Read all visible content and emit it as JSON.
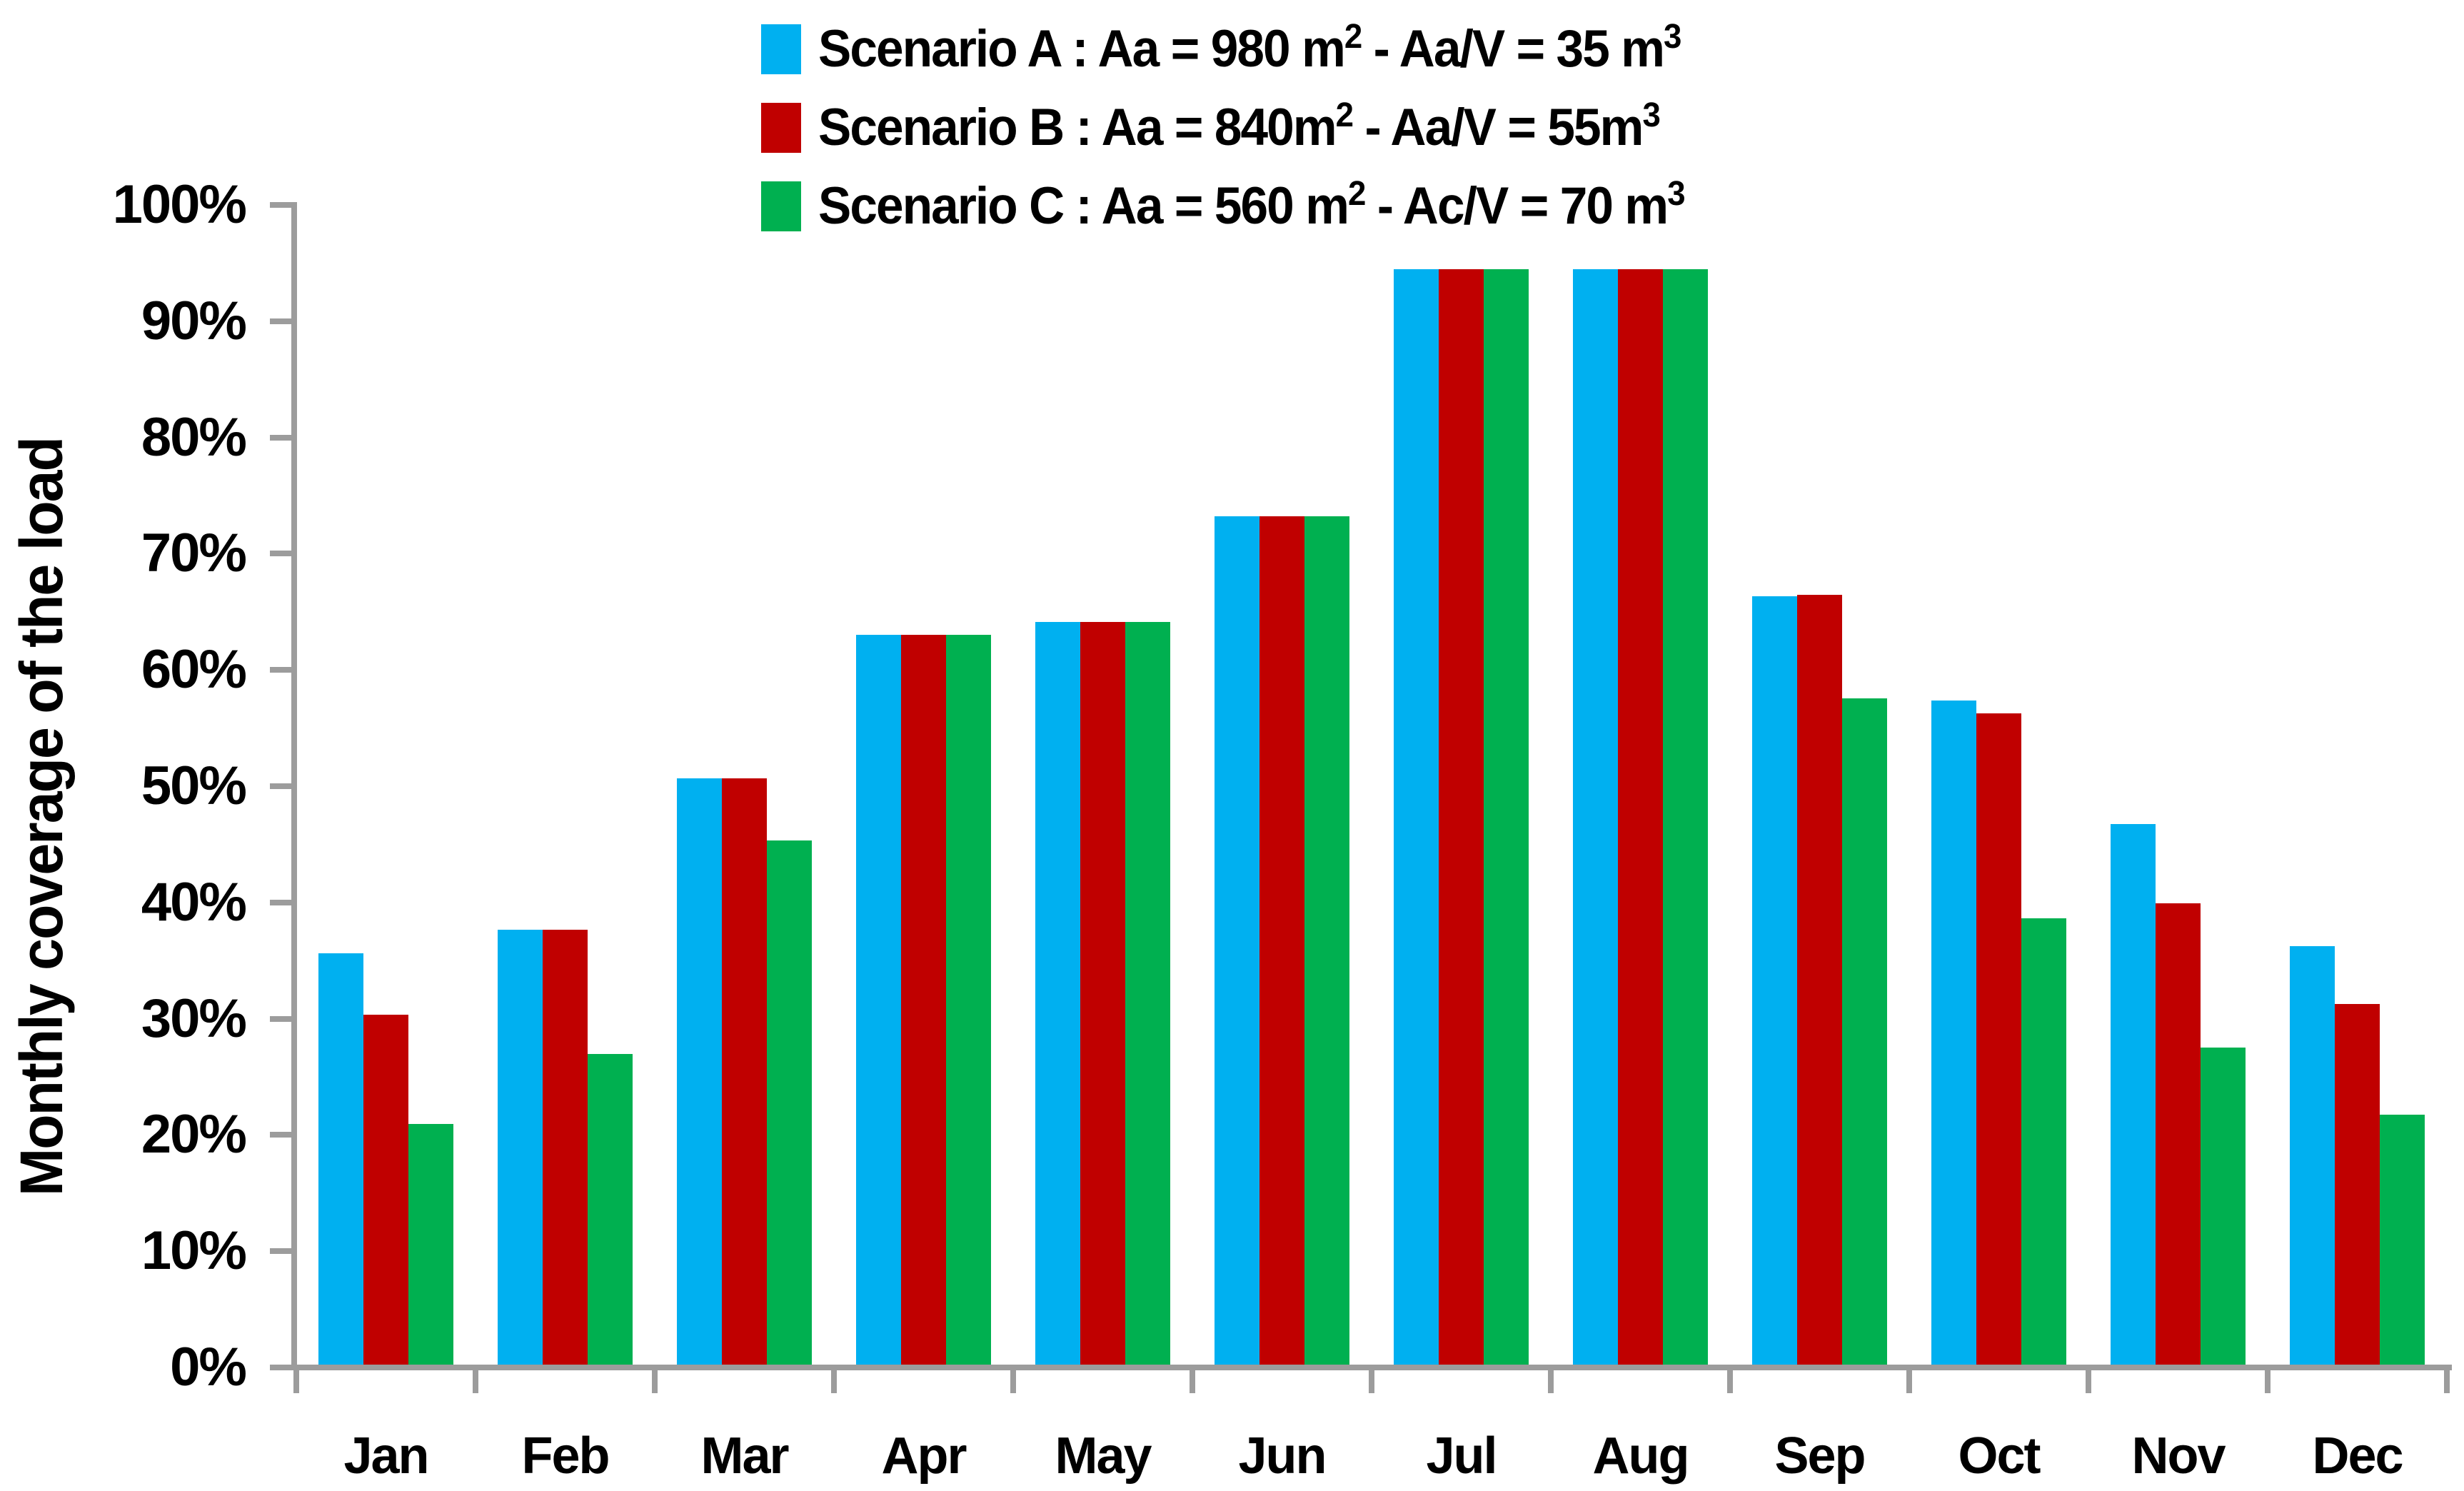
{
  "chart_data": {
    "type": "bar",
    "title": "",
    "xlabel": "",
    "ylabel": "Monthly coverage of the load",
    "ylim": [
      0,
      100
    ],
    "grid": false,
    "legend_position": "top",
    "axis_color": "#9C9C9C",
    "text_color": "#000000",
    "background_color": "#FFFFFF",
    "yticks": [
      "0%",
      "10%",
      "20%",
      "30%",
      "40%",
      "50%",
      "60%",
      "70%",
      "80%",
      "90%",
      "100%"
    ],
    "categories": [
      "Jan",
      "Feb",
      "Mar",
      "Apr",
      "May",
      "Jun",
      "Jul",
      "Aug",
      "Sep",
      "Oct",
      "Nov",
      "Dec"
    ],
    "series": [
      {
        "name": "Scenario A",
        "label": "Scenario A : Aa = 980 m² - Aa/V = 35 m³",
        "label_parts": [
          {
            "t": "Scenario A : Aa = 980 m"
          },
          {
            "t": "2",
            "sup": true
          },
          {
            "t": " - Aa/V = 35 m"
          },
          {
            "t": "3",
            "sup": true
          }
        ],
        "color": "#00B0F0",
        "values": [
          35.4,
          37.4,
          50.4,
          62.8,
          63.9,
          73.0,
          94.2,
          94.2,
          66.1,
          57.1,
          46.5,
          36.0
        ]
      },
      {
        "name": "Scenario B",
        "label": "Scenario B : Aa = 840m² - Aa/V = 55m³",
        "label_parts": [
          {
            "t": "Scenario B : Aa = 840m"
          },
          {
            "t": "2",
            "sup": true
          },
          {
            "t": " - Aa/V = 55m"
          },
          {
            "t": "3",
            "sup": true
          }
        ],
        "color": "#C00000",
        "values": [
          30.1,
          37.4,
          50.4,
          62.8,
          63.9,
          73.0,
          94.2,
          94.2,
          66.2,
          56.0,
          39.7,
          31.0
        ]
      },
      {
        "name": "Scenario C",
        "label": "Scenario C : Aa = 560 m² - Ac/V = 70 m³",
        "label_parts": [
          {
            "t": "Scenario C : Aa = 560 m"
          },
          {
            "t": "2",
            "sup": true
          },
          {
            "t": " - Ac/V = 70 m"
          },
          {
            "t": "3",
            "sup": true
          }
        ],
        "color": "#00B050",
        "values": [
          20.7,
          26.7,
          45.1,
          62.8,
          63.9,
          73.0,
          94.2,
          94.2,
          57.3,
          38.4,
          27.3,
          21.5
        ]
      }
    ]
  }
}
